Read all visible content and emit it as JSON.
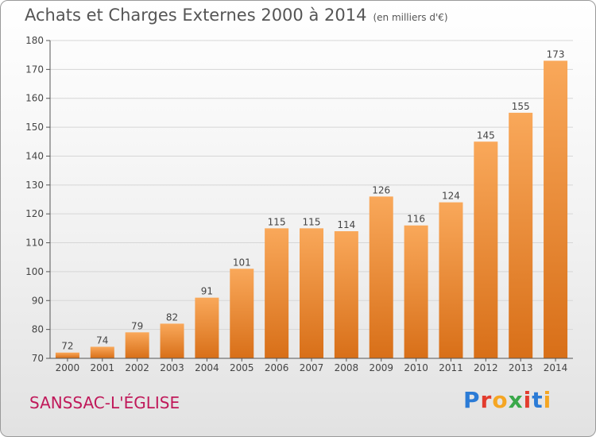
{
  "header": {
    "title": "Achats et Charges Externes 2000 à 2014",
    "subtitle": "(en milliers d'€)"
  },
  "footer": {
    "place": "SANSSAC-L'ÉGLISE",
    "logo": "Proxiti"
  },
  "colors": {
    "bar_light": "#f9a85a",
    "bar_dark": "#d86f18",
    "place": "#c0195a"
  },
  "chart_data": {
    "type": "bar",
    "title": "Achats et Charges Externes 2000 à 2014",
    "subtitle": "(en milliers d'€)",
    "xlabel": "",
    "ylabel": "",
    "categories": [
      "2000",
      "2001",
      "2002",
      "2003",
      "2004",
      "2005",
      "2006",
      "2007",
      "2008",
      "2009",
      "2010",
      "2011",
      "2012",
      "2013",
      "2014"
    ],
    "values": [
      72,
      74,
      79,
      82,
      91,
      101,
      115,
      115,
      114,
      126,
      116,
      124,
      145,
      155,
      173
    ],
    "ylim": [
      70,
      180
    ],
    "yticks": [
      70,
      80,
      90,
      100,
      110,
      120,
      130,
      140,
      150,
      160,
      170,
      180
    ],
    "grid": true,
    "legend": "none"
  }
}
